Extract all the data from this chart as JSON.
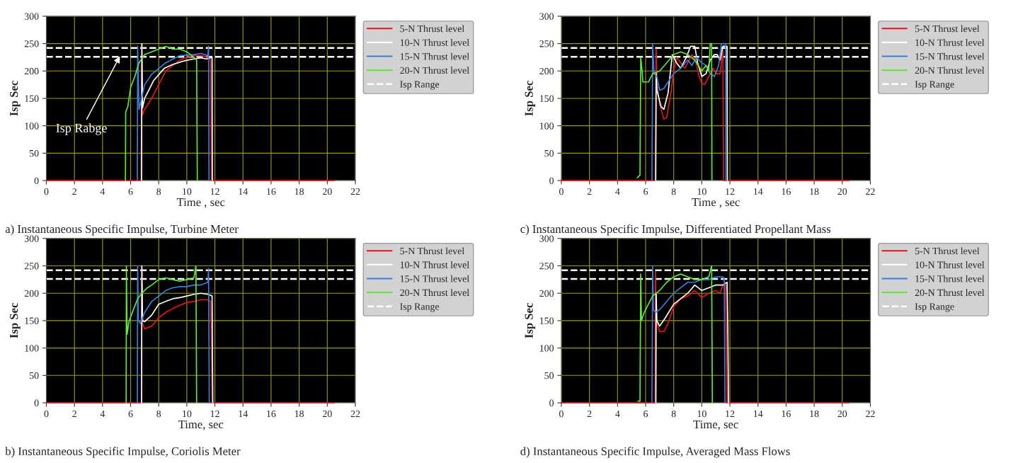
{
  "chart_data": [
    {
      "type": "line",
      "xlabel": "Time , sec",
      "ylabel": "Isp Sec",
      "xlim": [
        0,
        22
      ],
      "ylim": [
        0,
        300
      ],
      "xticks": [
        0,
        2,
        4,
        6,
        8,
        10,
        12,
        14,
        16,
        18,
        20,
        22
      ],
      "yticks": [
        0,
        50,
        100,
        150,
        200,
        250,
        300
      ],
      "grid": true,
      "legend": "right",
      "series": [
        {
          "name": "5-N Thrust level",
          "color": "#e8141c",
          "x": [
            0,
            6.75,
            6.8,
            6.85,
            7,
            7.5,
            8,
            8.5,
            9,
            9.5,
            10,
            10.5,
            11,
            11.5,
            11.7,
            11.75,
            20.5
          ],
          "values": [
            0,
            0,
            250,
            120,
            130,
            150,
            175,
            200,
            210,
            220,
            225,
            228,
            228,
            225,
            220,
            0,
            0
          ]
        },
        {
          "name": "10-N Thrust level",
          "color": "#ffffff",
          "x": [
            6.78,
            6.8,
            6.85,
            7,
            7.65,
            8.4,
            9,
            9.9,
            10.5,
            11,
            11.4,
            11.8,
            11.82
          ],
          "values": [
            0,
            250,
            133,
            150,
            183,
            205,
            212,
            219,
            222,
            224,
            222,
            225,
            0
          ]
        },
        {
          "name": "15-N Thrust level",
          "color": "#3a7fe0",
          "x": [
            6.48,
            6.5,
            6.6,
            7,
            7.5,
            8.5,
            9.5,
            10.5,
            11,
            11.5,
            11.55,
            11.58
          ],
          "values": [
            0,
            245,
            130,
            175,
            194,
            215,
            228,
            230,
            232,
            228,
            245,
            0
          ]
        },
        {
          "name": "20-N Thrust level",
          "color": "#5ee83a",
          "x": [
            5.63,
            5.65,
            5.8,
            6,
            6.3,
            6.6,
            7,
            7.5,
            8,
            8.5,
            9,
            9.5,
            10,
            10.5,
            10.7,
            10.75
          ],
          "values": [
            0,
            125,
            135,
            170,
            190,
            215,
            230,
            235,
            240,
            245,
            240,
            240,
            235,
            225,
            220,
            0
          ]
        }
      ],
      "ref_lines": [
        {
          "axis": "y",
          "value": 242,
          "label": "Isp Range",
          "color": "#ffffff",
          "line_style": "dashed"
        },
        {
          "axis": "y",
          "value": 226,
          "color": "#ffffff",
          "line_style": "dashed"
        }
      ],
      "annotations": [
        {
          "text": "Isp Rabge",
          "x": 5.3,
          "y": 230
        },
        "a) Instantaneous Specific Impulse, Turbine Meter"
      ]
    },
    {
      "type": "line",
      "xlabel": "Time , sec",
      "ylabel": "Isp Sec",
      "xlim": [
        0,
        22
      ],
      "ylim": [
        0,
        300
      ],
      "xticks": [
        0,
        2,
        4,
        6,
        8,
        10,
        12,
        14,
        16,
        18,
        20,
        22
      ],
      "yticks": [
        0,
        50,
        100,
        150,
        200,
        250,
        300
      ],
      "grid": true,
      "legend": "right",
      "series": [
        {
          "name": "5-N Thrust level",
          "color": "#e8141c",
          "x": [
            0,
            6.7,
            6.75,
            6.8,
            7,
            7.3,
            7.5,
            7.8,
            8,
            8.2,
            8.5,
            8.8,
            9,
            9.3,
            9.6,
            9.8,
            10,
            10.2,
            10.5,
            10.8,
            11,
            11.3,
            11.5,
            11.55,
            20.5
          ],
          "values": [
            0,
            0,
            240,
            180,
            140,
            112,
            115,
            160,
            200,
            225,
            215,
            205,
            215,
            230,
            215,
            190,
            178,
            175,
            190,
            205,
            195,
            195,
            240,
            0,
            0
          ]
        },
        {
          "name": "10-N Thrust level",
          "color": "#ffffff",
          "x": [
            6.72,
            6.75,
            6.8,
            7.1,
            7.3,
            7.6,
            7.9,
            8.2,
            8.5,
            8.9,
            9.2,
            9.5,
            9.7,
            10,
            10.3,
            10.6,
            10.9,
            11.1,
            11.3,
            11.5,
            11.8,
            11.82
          ],
          "values": [
            0,
            195,
            165,
            135,
            130,
            160,
            230,
            215,
            205,
            225,
            245,
            245,
            215,
            190,
            195,
            220,
            230,
            230,
            220,
            245,
            245,
            0
          ]
        },
        {
          "name": "15-N Thrust level",
          "color": "#3a7fe0",
          "x": [
            6.45,
            6.5,
            6.6,
            6.8,
            7,
            7.3,
            7.6,
            8,
            8.5,
            9,
            9.3,
            9.6,
            10,
            10.3,
            10.6,
            10.9,
            11.2,
            11.4,
            11.7,
            11.72
          ],
          "values": [
            0,
            250,
            195,
            190,
            165,
            168,
            180,
            195,
            205,
            220,
            210,
            225,
            215,
            210,
            195,
            190,
            210,
            250,
            250,
            0
          ]
        },
        {
          "name": "20-N Thrust level",
          "color": "#5ee83a",
          "x": [
            5.4,
            5.6,
            5.65,
            5.75,
            5.8,
            6.2,
            6.5,
            7,
            7.5,
            8,
            8.5,
            9,
            9.5,
            10,
            10.3,
            10.5,
            10.6,
            10.7,
            10.72
          ],
          "values": [
            5,
            10,
            225,
            200,
            180,
            180,
            195,
            200,
            215,
            230,
            235,
            230,
            220,
            200,
            210,
            200,
            250,
            250,
            0
          ]
        }
      ],
      "ref_lines": [
        {
          "axis": "y",
          "value": 242,
          "label": "Isp Range",
          "color": "#ffffff",
          "line_style": "dashed"
        },
        {
          "axis": "y",
          "value": 226,
          "color": "#ffffff",
          "line_style": "dashed"
        }
      ],
      "annotations": [
        "c) Instantaneous Specific Impulse, Differentiated Propellant Mass"
      ]
    },
    {
      "type": "line",
      "xlabel": "Time, sec",
      "ylabel": "Isp Sec",
      "xlim": [
        0,
        22
      ],
      "ylim": [
        0,
        300
      ],
      "xticks": [
        0,
        2,
        4,
        6,
        8,
        10,
        12,
        14,
        16,
        18,
        20,
        22
      ],
      "yticks": [
        0,
        50,
        100,
        150,
        200,
        250,
        300
      ],
      "grid": true,
      "legend": "right",
      "series": [
        {
          "name": "5-N Thrust level",
          "color": "#e8141c",
          "x": [
            0,
            6.78,
            6.8,
            6.85,
            7,
            7.5,
            8,
            8.5,
            9,
            9.5,
            10,
            10.5,
            11,
            11.5,
            11.7,
            11.75,
            11.8,
            20.5
          ],
          "values": [
            0,
            0,
            250,
            145,
            135,
            140,
            155,
            165,
            172,
            178,
            183,
            185,
            188,
            188,
            185,
            110,
            0,
            0
          ]
        },
        {
          "name": "10-N Thrust level",
          "color": "#ffffff",
          "x": [
            6.78,
            6.8,
            6.85,
            7,
            7.5,
            8,
            8.5,
            9,
            9.5,
            10,
            10.5,
            11,
            11.5,
            11.8,
            11.85
          ],
          "values": [
            0,
            250,
            150,
            148,
            160,
            180,
            185,
            190,
            192,
            195,
            198,
            200,
            198,
            195,
            0
          ]
        },
        {
          "name": "15-N Thrust level",
          "color": "#3a7fe0",
          "x": [
            6.48,
            6.5,
            6.55,
            6.7,
            7,
            7.5,
            8,
            8.5,
            9,
            9.5,
            10,
            10.5,
            11,
            11.5,
            11.55,
            11.6
          ],
          "values": [
            0,
            250,
            150,
            145,
            165,
            185,
            195,
            205,
            210,
            212,
            212,
            215,
            215,
            220,
            245,
            0
          ]
        },
        {
          "name": "20-N Thrust level",
          "color": "#5ee83a",
          "x": [
            5.68,
            5.7,
            5.75,
            5.9,
            6.2,
            6.5,
            6.8,
            7.2,
            7.5,
            8,
            8.5,
            9,
            9.5,
            10,
            10.5,
            10.65,
            10.7
          ],
          "values": [
            0,
            250,
            125,
            150,
            170,
            190,
            200,
            210,
            215,
            225,
            228,
            225,
            222,
            225,
            228,
            250,
            0
          ]
        }
      ],
      "ref_lines": [
        {
          "axis": "y",
          "value": 242,
          "label": "Isp Range",
          "color": "#ffffff",
          "line_style": "dashed"
        },
        {
          "axis": "y",
          "value": 226,
          "color": "#ffffff",
          "line_style": "dashed"
        }
      ],
      "annotations": [
        "b) Instantaneous Specific Impulse, Coriolis Meter"
      ]
    },
    {
      "type": "line",
      "xlabel": "Time, sec",
      "ylabel": "Isp Sec",
      "xlim": [
        0,
        22
      ],
      "ylim": [
        0,
        300
      ],
      "xticks": [
        0,
        2,
        4,
        6,
        8,
        10,
        12,
        14,
        16,
        18,
        20,
        22
      ],
      "yticks": [
        0,
        50,
        100,
        150,
        200,
        250,
        300
      ],
      "grid": true,
      "legend": "right",
      "series": [
        {
          "name": "5-N Thrust level",
          "color": "#e8141c",
          "x": [
            0,
            6.68,
            6.7,
            6.75,
            7,
            7.3,
            7.6,
            8,
            8.5,
            9,
            9.5,
            10,
            10.5,
            11,
            11.3,
            11.5,
            11.7,
            11.75,
            11.8,
            20.5
          ],
          "values": [
            0,
            0,
            240,
            150,
            130,
            130,
            145,
            175,
            190,
            195,
            205,
            192,
            200,
            205,
            200,
            215,
            215,
            130,
            0,
            0
          ]
        },
        {
          "name": "10-N Thrust level",
          "color": "#ffffff",
          "x": [
            6.73,
            6.75,
            6.8,
            7,
            7.4,
            8,
            8.5,
            9,
            9.5,
            10,
            10.5,
            11,
            11.5,
            11.8,
            11.85,
            11.9
          ],
          "values": [
            0,
            200,
            150,
            140,
            155,
            180,
            190,
            200,
            215,
            205,
            210,
            215,
            215,
            220,
            140,
            0
          ]
        },
        {
          "name": "15-N Thrust level",
          "color": "#3a7fe0",
          "x": [
            6.45,
            6.5,
            6.55,
            6.7,
            7,
            7.5,
            8,
            8.5,
            9,
            9.5,
            10,
            10.5,
            11,
            11.5,
            11.6,
            11.65
          ],
          "values": [
            0,
            250,
            170,
            165,
            170,
            185,
            200,
            210,
            220,
            220,
            225,
            225,
            230,
            230,
            225,
            0
          ]
        },
        {
          "name": "20-N Thrust level",
          "color": "#5ee83a",
          "x": [
            5.45,
            5.6,
            5.65,
            5.7,
            5.9,
            6.2,
            6.5,
            7,
            7.5,
            8,
            8.5,
            9,
            9.5,
            10,
            10.5,
            10.7,
            10.75
          ],
          "values": [
            3,
            3,
            235,
            150,
            165,
            180,
            195,
            205,
            220,
            230,
            235,
            230,
            225,
            225,
            230,
            250,
            0
          ]
        }
      ],
      "ref_lines": [
        {
          "axis": "y",
          "value": 242,
          "label": "Isp Range",
          "color": "#ffffff",
          "line_style": "dashed"
        },
        {
          "axis": "y",
          "value": 226,
          "color": "#ffffff",
          "line_style": "dashed"
        }
      ],
      "annotations": [
        "d) Instantaneous Specific Impulse, Averaged Mass Flows"
      ]
    }
  ]
}
